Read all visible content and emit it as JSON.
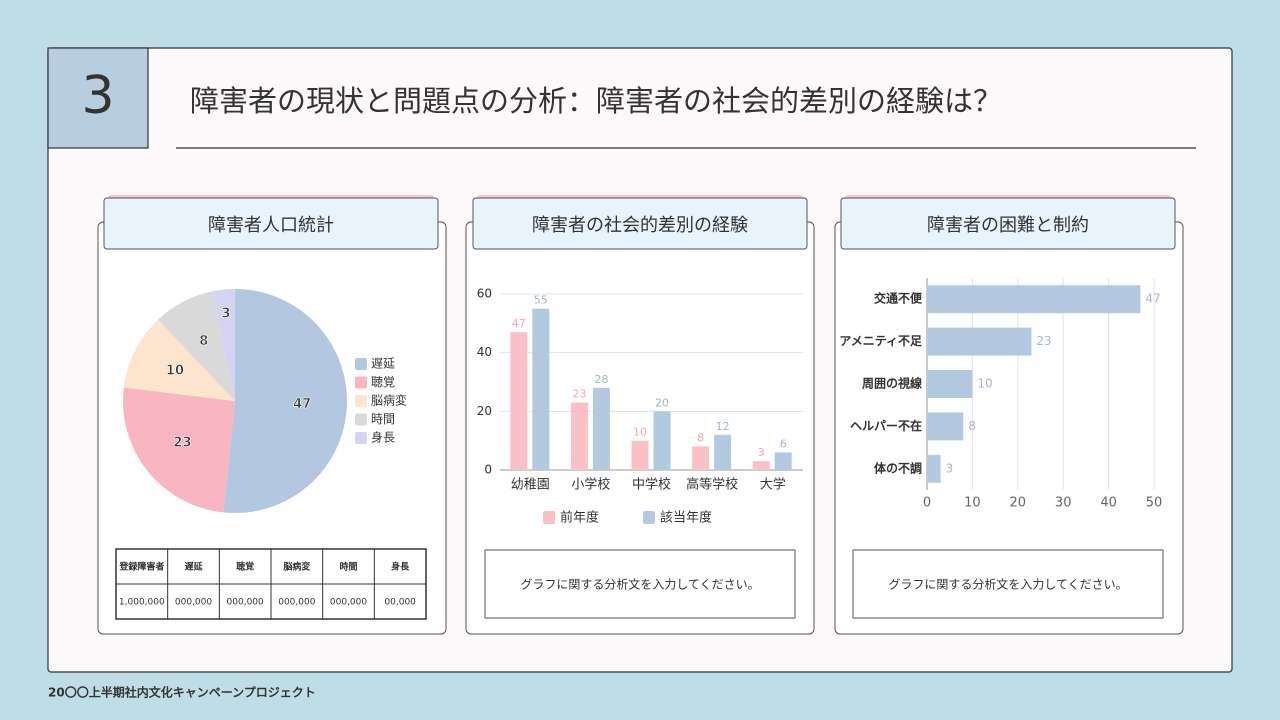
{
  "slide": {
    "number": "3",
    "title": "障害者の現状と問題点の分析：障害者の社会的差別の経験は？",
    "footer": "20〇〇上半期社内文化キャンペーンプロジェクト"
  },
  "chart_data": [
    {
      "type": "pie",
      "title": "障害者人口統計",
      "categories": [
        "遅延",
        "聴覚",
        "脳病変",
        "時間",
        "身長"
      ],
      "values": [
        47,
        23,
        10,
        8,
        3
      ],
      "colors": [
        "#b3c8e0",
        "#f9b5c0",
        "#fde4cf",
        "#d9d9d9",
        "#d4d4f2"
      ]
    },
    {
      "type": "bar",
      "title": "障害者の社会的差別の経験",
      "categories": [
        "幼稚園",
        "小学校",
        "中学校",
        "高等学校",
        "大学"
      ],
      "series": [
        {
          "name": "前年度",
          "color": "#f9c0c8",
          "values": [
            47,
            23,
            10,
            8,
            3
          ]
        },
        {
          "name": "該当年度",
          "color": "#b3c9e0",
          "values": [
            55,
            28,
            20,
            12,
            6
          ]
        }
      ],
      "ylim": [
        0,
        60
      ],
      "yticks": [
        0,
        20,
        40,
        60
      ],
      "grid": true,
      "legend": "bottom"
    },
    {
      "type": "barh",
      "title": "障害者の困難と制約",
      "categories": [
        "交通不便",
        "アメニティ不足",
        "周囲の視線",
        "ヘルパー不在",
        "体の不調"
      ],
      "values": [
        47,
        23,
        10,
        8,
        3
      ],
      "color": "#b3c9e0",
      "xlim": [
        0,
        50
      ],
      "xticks": [
        0,
        10,
        20,
        30,
        40,
        50
      ],
      "grid": true
    }
  ],
  "table": {
    "header": [
      "登録障害者",
      "遅延",
      "聴覚",
      "脳病変",
      "時間",
      "身長"
    ],
    "rows": [
      [
        "1,000,000",
        "000,000",
        "000,000",
        "000,000",
        "000,000",
        "00,000"
      ]
    ]
  },
  "notes": [
    "グラフに関する分析文を入力してください。",
    "グラフに関する分析文を入力してください。"
  ]
}
